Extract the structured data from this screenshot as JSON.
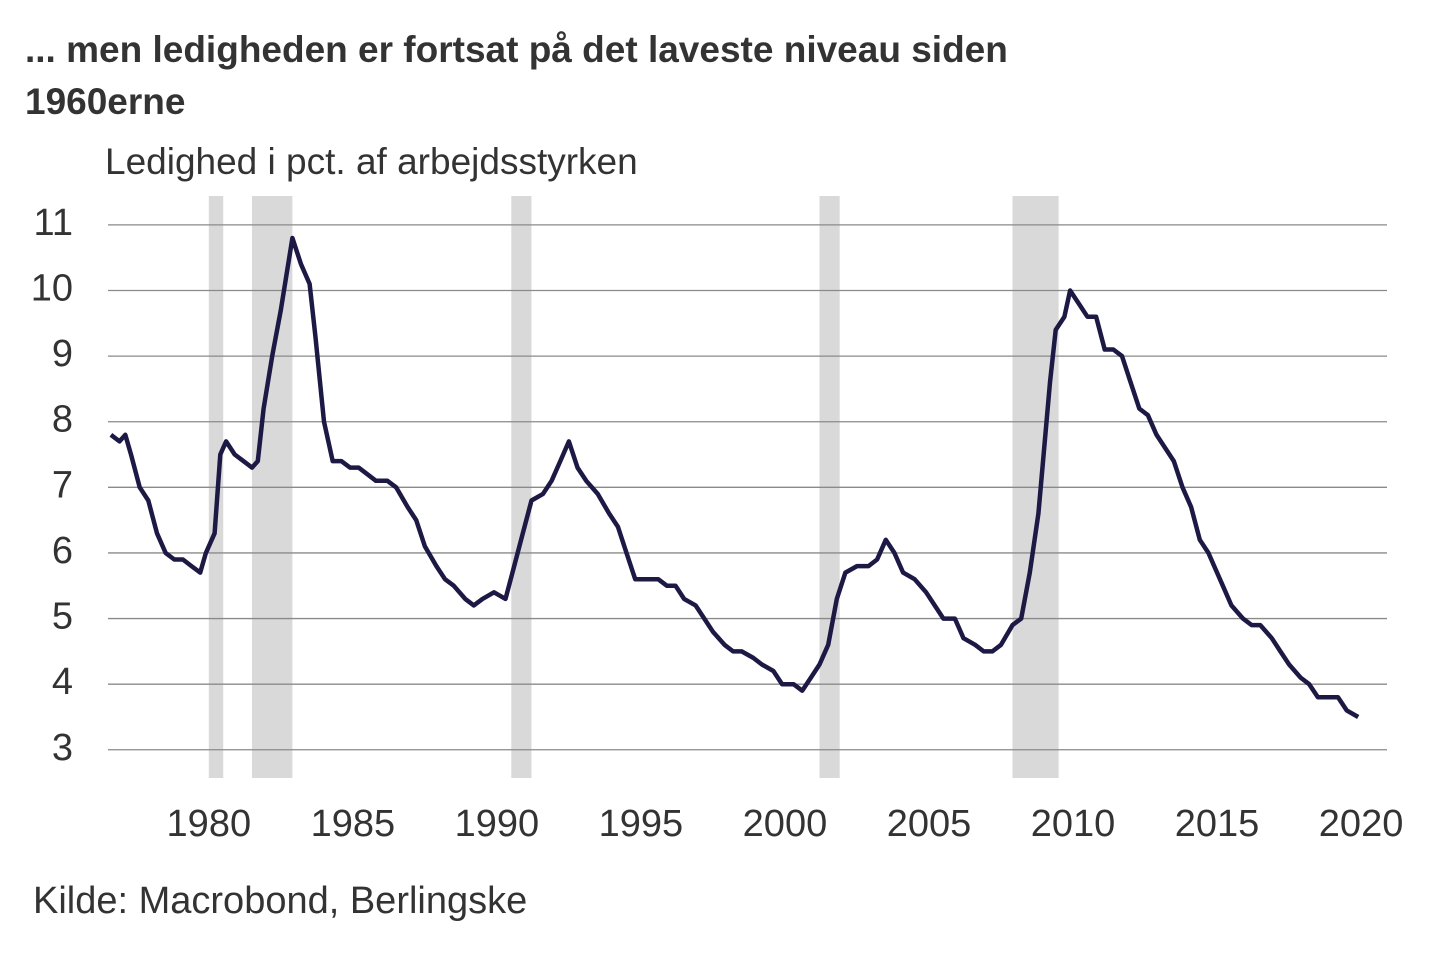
{
  "chart_data": {
    "type": "line",
    "title": "... men ledigheden er fortsat på det laveste niveau siden",
    "title_line2": "1960erne",
    "subtitle": "Ledighed i pct. af arbejdsstyrken",
    "source": "Kilde: Macrobond, Berlingske",
    "xlim": [
      1976.5,
      2020.9
    ],
    "xticks": [
      1980,
      1985,
      1990,
      1995,
      2000,
      2005,
      2010,
      2015,
      2020
    ],
    "ylim": [
      2.57,
      11.44
    ],
    "yticks": [
      3,
      4,
      5,
      6,
      7,
      8,
      9,
      10,
      11
    ],
    "grid": true,
    "shade_color": "#d9d9d9",
    "shaded_periods": [
      [
        1980.0,
        1980.5
      ],
      [
        1981.5,
        1982.9
      ],
      [
        1990.5,
        1991.2
      ],
      [
        2001.2,
        2001.9
      ],
      [
        2007.9,
        2009.5
      ]
    ],
    "x": [
      1976.6,
      1976.9,
      1977.1,
      1977.3,
      1977.6,
      1977.9,
      1978.2,
      1978.5,
      1978.8,
      1979.1,
      1979.4,
      1979.7,
      1979.9,
      1980.2,
      1980.4,
      1980.6,
      1980.9,
      1981.2,
      1981.5,
      1981.7,
      1981.9,
      1982.2,
      1982.5,
      1982.9,
      1983.2,
      1983.5,
      1983.7,
      1984.0,
      1984.3,
      1984.6,
      1984.9,
      1985.2,
      1985.5,
      1985.8,
      1986.2,
      1986.5,
      1986.9,
      1987.2,
      1987.5,
      1987.9,
      1988.2,
      1988.5,
      1988.9,
      1989.2,
      1989.5,
      1989.9,
      1990.3,
      1990.6,
      1990.9,
      1991.2,
      1991.6,
      1991.9,
      1992.2,
      1992.5,
      1992.8,
      1993.1,
      1993.5,
      1993.9,
      1994.2,
      1994.5,
      1994.8,
      1995.2,
      1995.6,
      1995.9,
      1996.2,
      1996.5,
      1996.9,
      1997.2,
      1997.5,
      1997.9,
      1998.2,
      1998.5,
      1998.9,
      1999.2,
      1999.6,
      1999.9,
      2000.3,
      2000.6,
      2000.9,
      2001.2,
      2001.5,
      2001.8,
      2002.1,
      2002.5,
      2002.9,
      2003.2,
      2003.5,
      2003.8,
      2004.1,
      2004.5,
      2004.9,
      2005.2,
      2005.5,
      2005.9,
      2006.2,
      2006.6,
      2006.9,
      2007.2,
      2007.5,
      2007.9,
      2008.2,
      2008.5,
      2008.8,
      2009.0,
      2009.2,
      2009.4,
      2009.7,
      2009.9,
      2010.2,
      2010.5,
      2010.8,
      2011.1,
      2011.4,
      2011.7,
      2012.0,
      2012.3,
      2012.6,
      2012.9,
      2013.2,
      2013.5,
      2013.8,
      2014.1,
      2014.4,
      2014.7,
      2014.9,
      2015.2,
      2015.5,
      2015.9,
      2016.2,
      2016.5,
      2016.9,
      2017.2,
      2017.5,
      2017.9,
      2018.2,
      2018.5,
      2018.9,
      2019.2,
      2019.5,
      2019.9
    ],
    "series": [
      {
        "color": "#1c1a45",
        "values": [
          7.8,
          7.7,
          7.8,
          7.5,
          7.0,
          6.8,
          6.3,
          6.0,
          5.9,
          5.9,
          5.8,
          5.7,
          6.0,
          6.3,
          7.5,
          7.7,
          7.5,
          7.4,
          7.3,
          7.4,
          8.2,
          9.0,
          9.7,
          10.8,
          10.4,
          10.1,
          9.3,
          8.0,
          7.4,
          7.4,
          7.3,
          7.3,
          7.2,
          7.1,
          7.1,
          7.0,
          6.7,
          6.5,
          6.1,
          5.8,
          5.6,
          5.5,
          5.3,
          5.2,
          5.3,
          5.4,
          5.3,
          5.8,
          6.3,
          6.8,
          6.9,
          7.1,
          7.4,
          7.7,
          7.3,
          7.1,
          6.9,
          6.6,
          6.4,
          6.0,
          5.6,
          5.6,
          5.6,
          5.5,
          5.5,
          5.3,
          5.2,
          5.0,
          4.8,
          4.6,
          4.5,
          4.5,
          4.4,
          4.3,
          4.2,
          4.0,
          4.0,
          3.9,
          4.1,
          4.3,
          4.6,
          5.3,
          5.7,
          5.8,
          5.8,
          5.9,
          6.2,
          6.0,
          5.7,
          5.6,
          5.4,
          5.2,
          5.0,
          5.0,
          4.7,
          4.6,
          4.5,
          4.5,
          4.6,
          4.9,
          5.0,
          5.7,
          6.6,
          7.6,
          8.6,
          9.4,
          9.6,
          10.0,
          9.8,
          9.6,
          9.6,
          9.1,
          9.1,
          9.0,
          8.6,
          8.2,
          8.1,
          7.8,
          7.6,
          7.4,
          7.0,
          6.7,
          6.2,
          6.0,
          5.8,
          5.5,
          5.2,
          5.0,
          4.9,
          4.9,
          4.7,
          4.5,
          4.3,
          4.1,
          4.0,
          3.8,
          3.8,
          3.8,
          3.6,
          3.5
        ]
      }
    ]
  }
}
